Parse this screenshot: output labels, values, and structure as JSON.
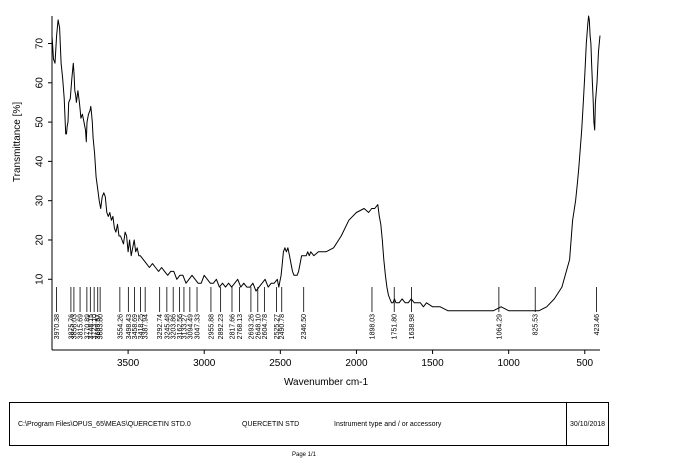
{
  "chart_data": {
    "type": "line",
    "title": "",
    "xlabel": "Wavenumber cm-1",
    "ylabel": "Transmittance [%]",
    "xlim": [
      4000,
      400
    ],
    "ylim": [
      -8,
      77
    ],
    "x_axis_reversed": true,
    "x_ticks": [
      3500,
      3000,
      2500,
      2000,
      1500,
      1000,
      500
    ],
    "y_ticks": [
      10,
      20,
      30,
      40,
      50,
      60,
      70
    ],
    "grid": false,
    "peak_labels": [
      "3970.38",
      "3875.76",
      "3856.03",
      "3815.69",
      "3770.89",
      "3748.15",
      "3723.10",
      "3699.57",
      "3683.80",
      "3554.26",
      "3498.43",
      "3458.69",
      "3418.25",
      "3387.94",
      "3292.74",
      "3245.48",
      "3203.86",
      "3162.56",
      "3133.27",
      "3094.49",
      "3047.33",
      "2955.88",
      "2892.23",
      "2817.66",
      "2768.13",
      "2693.26",
      "2648.10",
      "2604.78",
      "2525.27",
      "2490.78",
      "2346.50",
      "1898.03",
      "1751.80",
      "1638.98",
      "1064.29",
      "825.53",
      "423.46"
    ],
    "series": [
      {
        "x": [
          4000,
          3990,
          3980,
          3970,
          3960,
          3950,
          3940,
          3930,
          3920,
          3910,
          3905,
          3900,
          3895,
          3890,
          3880,
          3870,
          3860,
          3855,
          3850,
          3845,
          3840,
          3830,
          3820,
          3815,
          3810,
          3800,
          3790,
          3785,
          3780,
          3775,
          3770,
          3760,
          3750,
          3745,
          3740,
          3735,
          3730,
          3720,
          3710,
          3700,
          3690,
          3680,
          3670,
          3660,
          3650,
          3640,
          3630,
          3620,
          3610,
          3600,
          3590,
          3580,
          3570,
          3560,
          3550,
          3540,
          3530,
          3520,
          3510,
          3500,
          3490,
          3480,
          3470,
          3460,
          3450,
          3440,
          3430,
          3420,
          3400,
          3380,
          3360,
          3340,
          3320,
          3300,
          3280,
          3260,
          3240,
          3220,
          3200,
          3180,
          3160,
          3140,
          3120,
          3100,
          3080,
          3060,
          3040,
          3020,
          3000,
          2980,
          2960,
          2940,
          2920,
          2900,
          2880,
          2860,
          2840,
          2820,
          2800,
          2780,
          2760,
          2740,
          2720,
          2700,
          2680,
          2660,
          2640,
          2620,
          2600,
          2580,
          2560,
          2540,
          2520,
          2510,
          2500,
          2495,
          2490,
          2480,
          2470,
          2460,
          2450,
          2440,
          2430,
          2420,
          2410,
          2400,
          2390,
          2380,
          2370,
          2360,
          2350,
          2340,
          2330,
          2320,
          2310,
          2300,
          2280,
          2250,
          2200,
          2150,
          2100,
          2050,
          2000,
          1950,
          1920,
          1900,
          1880,
          1860,
          1850,
          1840,
          1830,
          1820,
          1810,
          1800,
          1790,
          1780,
          1770,
          1760,
          1750,
          1740,
          1720,
          1700,
          1680,
          1660,
          1640,
          1620,
          1600,
          1580,
          1560,
          1540,
          1500,
          1450,
          1400,
          1350,
          1300,
          1250,
          1200,
          1150,
          1100,
          1050,
          1000,
          950,
          900,
          850,
          800,
          750,
          700,
          650,
          600,
          580,
          560,
          550,
          540,
          530,
          520,
          510,
          500,
          490,
          480,
          475,
          470,
          465,
          460,
          455,
          450,
          445,
          440,
          435,
          430,
          420,
          410,
          400
        ],
        "y": [
          72,
          66,
          65,
          72,
          76,
          74,
          65,
          61,
          56,
          47,
          47,
          49,
          50,
          55,
          56,
          61,
          65,
          62,
          58,
          57,
          55,
          58,
          55,
          53,
          51,
          52,
          50,
          49,
          48,
          45,
          50,
          52,
          53,
          54,
          52,
          50,
          46,
          42,
          36,
          33,
          30,
          28,
          31,
          32,
          31,
          27,
          26,
          27,
          25,
          26,
          23,
          22,
          24,
          21,
          21,
          20,
          19,
          22,
          21,
          17,
          20,
          16,
          18,
          20,
          17,
          18,
          16,
          16,
          15,
          14,
          13,
          14,
          13,
          12,
          13,
          12,
          11,
          12,
          12,
          10,
          11,
          11,
          9,
          10,
          11,
          10,
          9,
          9,
          11,
          10,
          9,
          9,
          10,
          8,
          9,
          8,
          9,
          8,
          9,
          10,
          8,
          9,
          8,
          8,
          9,
          7,
          8,
          9,
          10,
          8,
          9,
          9,
          10,
          8,
          10,
          11,
          13,
          17,
          18,
          17,
          18,
          16,
          14,
          12,
          11,
          11,
          11,
          12,
          14,
          16,
          16,
          16,
          16,
          17,
          16,
          17,
          16,
          17,
          17,
          18,
          21,
          25,
          27,
          28,
          27,
          28,
          28,
          29,
          26,
          24,
          20,
          15,
          11,
          8,
          6,
          5,
          4,
          4,
          5,
          4,
          4,
          5,
          4,
          4,
          5,
          4,
          4,
          4,
          3,
          4,
          3,
          3,
          2,
          2,
          2,
          2,
          2,
          2,
          2,
          3,
          2,
          2,
          2,
          2,
          2,
          3,
          5,
          8,
          15,
          25,
          30,
          34,
          38,
          43,
          48,
          55,
          62,
          70,
          75,
          80,
          76,
          72,
          70,
          65,
          60,
          56,
          50,
          48,
          55,
          60,
          68,
          72
        ]
      }
    ]
  },
  "footer": {
    "path": "C:\\Program Files\\OPUS_65\\MEAS\\QUERCETIN STD.0",
    "sample": "QUERCETIN STD",
    "instrument": "Instrument type and / or accessory",
    "date": "30/10/2018"
  },
  "cut_off_text": "Page 1/1"
}
